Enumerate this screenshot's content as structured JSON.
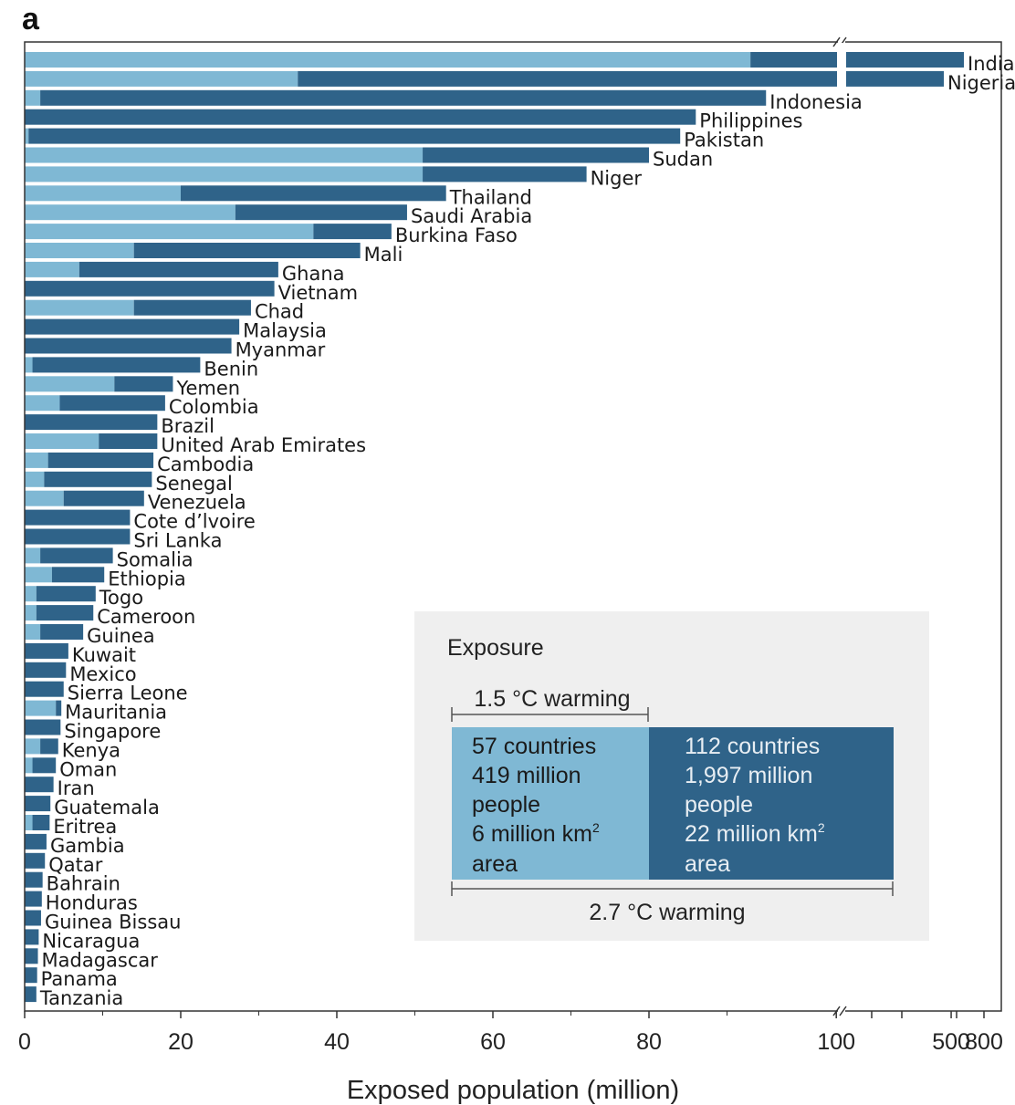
{
  "panel_label": "a",
  "chart_data": {
    "type": "bar",
    "orientation": "horizontal",
    "stacked": true,
    "xlabel": "Exposed population (million)",
    "x_ticks": [
      "0",
      "20",
      "40",
      "60",
      "80",
      "100",
      "500",
      "800"
    ],
    "x_axis_break": true,
    "colors": {
      "light": "#7fb8d4",
      "dark": "#2f6389"
    },
    "series": [
      {
        "name": "1.5 °C warming",
        "color": "#7fb8d4"
      },
      {
        "name": "2.7 °C warming",
        "color": "#2f6389"
      }
    ],
    "categories": [
      "India",
      "Nigeria",
      "Indonesia",
      "Philippines",
      "Pakistan",
      "Sudan",
      "Niger",
      "Thailand",
      "Saudi Arabia",
      "Burkina Faso",
      "Mali",
      "Ghana",
      "Vietnam",
      "Chad",
      "Malaysia",
      "Myanmar",
      "Benin",
      "Yemen",
      "Colombia",
      "Brazil",
      "United Arab Emirates",
      "Cambodia",
      "Senegal",
      "Venezuela",
      "Cote d’lvoire",
      "Sri Lanka",
      "Somalia",
      "Ethiopia",
      "Togo",
      "Cameroon",
      "Guinea",
      "Kuwait",
      "Mexico",
      "Sierra Leone",
      "Mauritania",
      "Singapore",
      "Kenya",
      "Oman",
      "Iran",
      "Guatemala",
      "Eritrea",
      "Gambia",
      "Qatar",
      "Bahrain",
      "Honduras",
      "Guinea Bissau",
      "Nicaragua",
      "Madagascar",
      "Panama",
      "Tanzania"
    ],
    "values_1_5C": [
      93,
      35,
      2,
      0,
      0.5,
      51,
      51,
      20,
      27,
      37,
      14,
      7,
      0,
      14,
      0,
      0,
      1,
      11.5,
      4.5,
      0,
      9.5,
      3,
      2.5,
      5,
      0,
      0,
      2,
      3.5,
      1.5,
      1.5,
      2,
      0,
      0,
      0,
      4,
      0,
      2,
      1,
      0,
      0,
      1,
      0,
      0,
      0,
      0,
      0,
      0,
      0,
      0,
      0
    ],
    "values_2_7C": [
      600,
      450,
      95,
      86,
      84,
      80,
      72,
      54,
      49,
      47,
      43,
      32.5,
      32,
      29,
      27.5,
      26.5,
      22.5,
      19,
      18,
      17,
      17,
      16.5,
      16.3,
      15.3,
      13.5,
      13.5,
      11.3,
      10.2,
      9.1,
      8.8,
      7.5,
      5.6,
      5.3,
      5,
      4.7,
      4.6,
      4.3,
      4,
      3.7,
      3.3,
      3.2,
      2.8,
      2.6,
      2.3,
      2.2,
      2.1,
      1.8,
      1.7,
      1.6,
      1.5
    ],
    "legend": {
      "title": "Exposure",
      "low_label": "1.5 °C warming",
      "high_label": "2.7 °C warming",
      "low_lines": [
        "57 countries",
        "419 million",
        "people",
        "6 million km",
        "area"
      ],
      "high_lines": [
        "112 countries",
        "1,997 million",
        "people",
        "22 million km",
        "area"
      ],
      "superscript": "2"
    }
  }
}
